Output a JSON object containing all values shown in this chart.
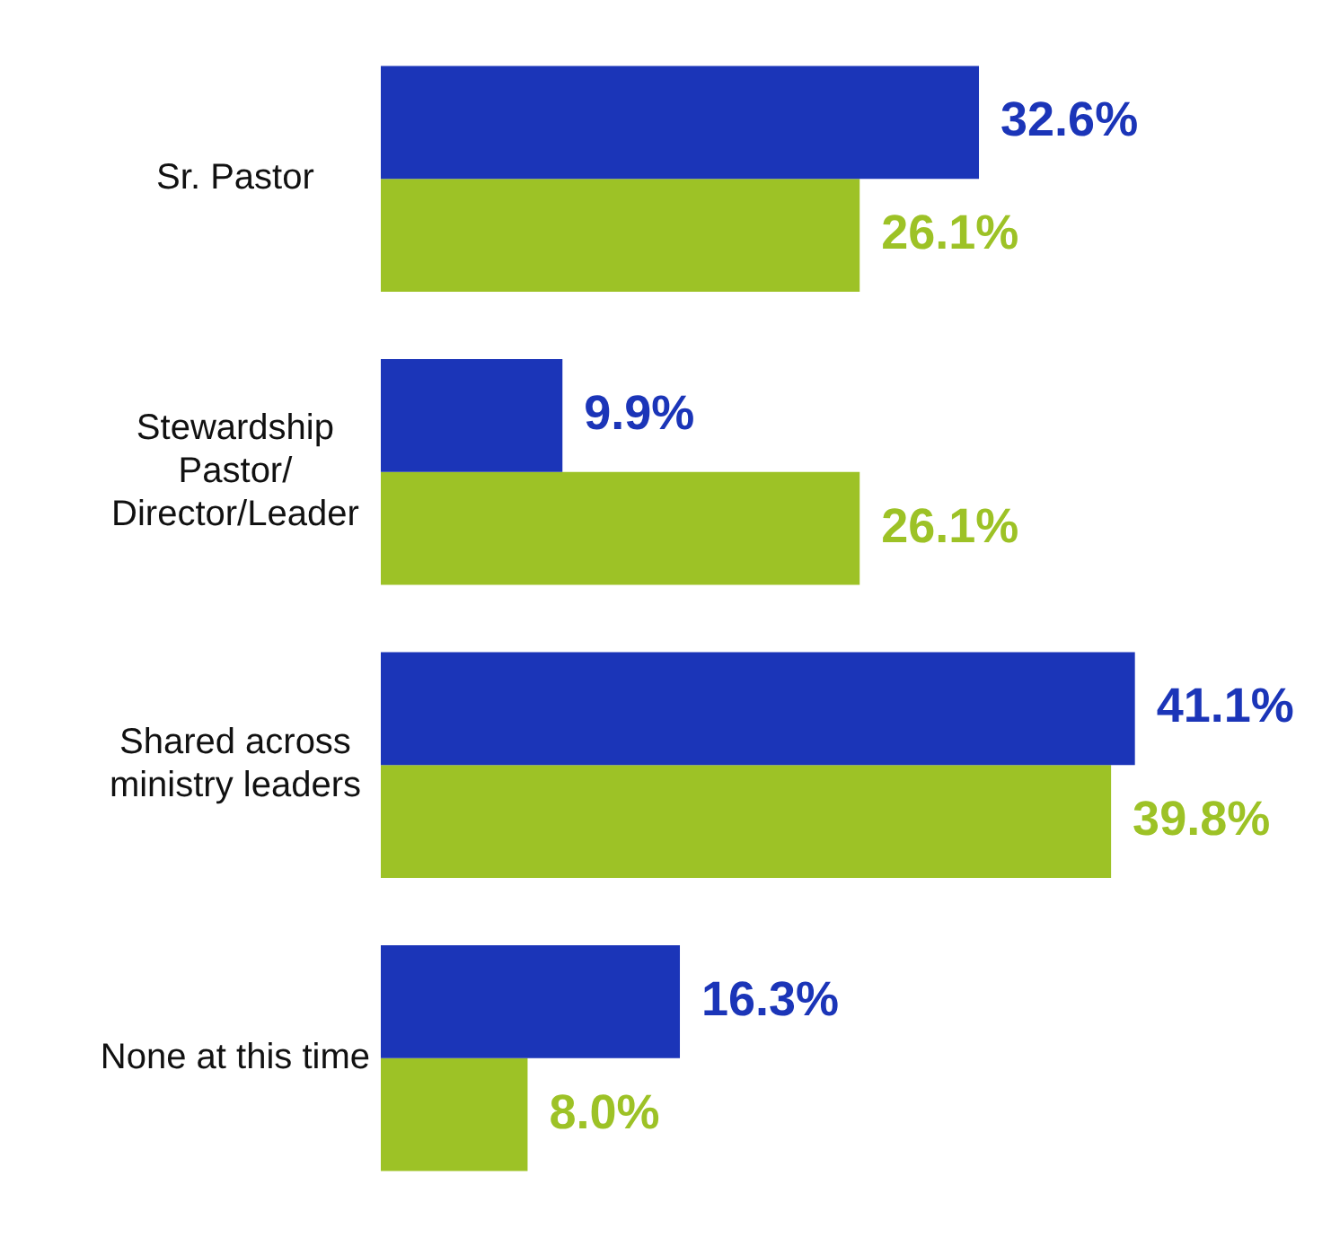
{
  "chart_data": {
    "type": "bar",
    "orientation": "horizontal",
    "categories": [
      "Sr. Pastor",
      "Stewardship Pastor/Director/Leader",
      "Shared across ministry leaders",
      "None at this time"
    ],
    "series": [
      {
        "color": "#1b35b8",
        "values": [
          32.6,
          9.9,
          41.1,
          16.3
        ],
        "value_labels": [
          "32.6%",
          "9.9%",
          "41.1%",
          "16.3%"
        ]
      },
      {
        "color": "#9dc226",
        "values": [
          26.1,
          26.1,
          39.8,
          8.0
        ],
        "value_labels": [
          "26.1%",
          "26.1%",
          "39.8%",
          "8.0%"
        ]
      }
    ]
  }
}
